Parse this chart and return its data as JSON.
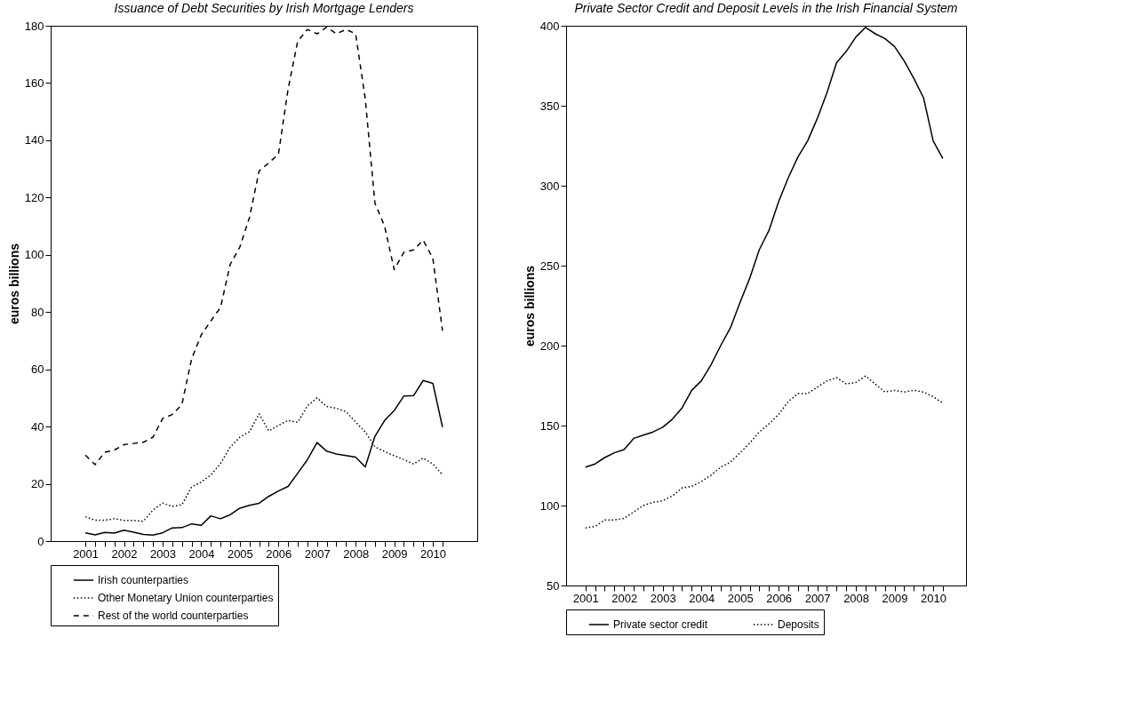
{
  "chart_data": [
    {
      "type": "line",
      "title": "Issuance of Debt Securities by Irish Mortgage Lenders",
      "ylabel": "euros billions",
      "legend": "bottom",
      "x": [
        2001,
        2001.25,
        2001.5,
        2001.75,
        2002,
        2002.25,
        2002.5,
        2002.75,
        2003,
        2003.25,
        2003.5,
        2003.75,
        2004,
        2004.25,
        2004.5,
        2004.75,
        2005,
        2005.25,
        2005.5,
        2005.75,
        2006,
        2006.25,
        2006.5,
        2006.75,
        2007,
        2007.25,
        2007.5,
        2007.75,
        2008,
        2008.25,
        2008.5,
        2008.75,
        2009,
        2009.25,
        2009.5,
        2009.75,
        2010,
        2010.25
      ],
      "xlim": [
        2000.1,
        2011.15
      ],
      "ylim": [
        0,
        180
      ],
      "yticks": [
        0,
        20,
        40,
        60,
        80,
        100,
        120,
        140,
        160,
        180
      ],
      "xticks": [
        2001,
        {
          "value": 2001.25,
          "label": null
        },
        {
          "value": 2001.5,
          "label": null
        },
        {
          "value": 2001.75,
          "label": null
        },
        2002,
        {
          "value": 2002.25,
          "label": null
        },
        {
          "value": 2002.5,
          "label": null
        },
        {
          "value": 2002.75,
          "label": null
        },
        2003,
        {
          "value": 2003.25,
          "label": null
        },
        {
          "value": 2003.5,
          "label": null
        },
        {
          "value": 2003.75,
          "label": null
        },
        2004,
        {
          "value": 2004.25,
          "label": null
        },
        {
          "value": 2004.5,
          "label": null
        },
        {
          "value": 2004.75,
          "label": null
        },
        2005,
        {
          "value": 2005.25,
          "label": null
        },
        {
          "value": 2005.5,
          "label": null
        },
        {
          "value": 2005.75,
          "label": null
        },
        2006,
        {
          "value": 2006.25,
          "label": null
        },
        {
          "value": 2006.5,
          "label": null
        },
        {
          "value": 2006.75,
          "label": null
        },
        2007,
        {
          "value": 2007.25,
          "label": null
        },
        {
          "value": 2007.5,
          "label": null
        },
        {
          "value": 2007.75,
          "label": null
        },
        2008,
        {
          "value": 2008.25,
          "label": null
        },
        {
          "value": 2008.5,
          "label": null
        },
        {
          "value": 2008.75,
          "label": null
        },
        2009,
        {
          "value": 2009.25,
          "label": null
        },
        {
          "value": 2009.5,
          "label": null
        },
        {
          "value": 2009.75,
          "label": null
        },
        2010,
        {
          "value": 2010.25,
          "label": null
        }
      ],
      "series": [
        {
          "name": "Irish counterparties",
          "color": "#000000",
          "line_style": "solid",
          "values": [
            2.9,
            2.2,
            3.0,
            2.8,
            3.8,
            3.1,
            2.3,
            2.1,
            2.9,
            4.6,
            4.7,
            6.0,
            5.5,
            8.8,
            7.8,
            9.2,
            11.5,
            12.5,
            13.2,
            15.6,
            17.5,
            19.1,
            23.7,
            28.4,
            34.4,
            31.4,
            30.4,
            29.9,
            29.3,
            25.9,
            36.6,
            42.1,
            45.6,
            50.7,
            50.8,
            56.1,
            55.1,
            39.8
          ]
        },
        {
          "name": "Other Monetary Union counterparties",
          "color": "#000000",
          "line_style": "dotted",
          "values": [
            8.5,
            7.3,
            7.3,
            7.8,
            7.2,
            7.2,
            6.9,
            10.8,
            13.3,
            12.1,
            12.7,
            18.9,
            20.6,
            23.1,
            27.1,
            32.8,
            36.3,
            38.2,
            44.4,
            38.5,
            40.4,
            42.1,
            41.5,
            47.2,
            50.0,
            47.0,
            46.4,
            45.2,
            41.6,
            38.1,
            32.9,
            31.3,
            29.8,
            28.5,
            26.9,
            29.0,
            26.9,
            23.2
          ]
        },
        {
          "name": "Rest of the world counterparties",
          "color": "#000000",
          "line_style": "dashed",
          "values": [
            30.0,
            26.7,
            31.0,
            31.8,
            33.7,
            34.1,
            34.5,
            36.3,
            42.8,
            44.2,
            47.7,
            63.6,
            72.0,
            76.9,
            81.6,
            96.6,
            102.7,
            113.0,
            129.3,
            132.1,
            135.1,
            157.9,
            174.6,
            178.7,
            177.2,
            179.5,
            177.2,
            178.7,
            177.2,
            154.4,
            118.0,
            110.0,
            94.8,
            100.9,
            101.7,
            105.1,
            98.8,
            73.5
          ]
        }
      ]
    },
    {
      "type": "line",
      "title": "Private Sector Credit and Deposit Levels in the Irish Financial System",
      "ylabel": "euros billions",
      "legend": "bottom",
      "x": [
        2001,
        2001.25,
        2001.5,
        2001.75,
        2002,
        2002.25,
        2002.5,
        2002.75,
        2003,
        2003.25,
        2003.5,
        2003.75,
        2004,
        2004.25,
        2004.5,
        2004.75,
        2005,
        2005.25,
        2005.5,
        2005.75,
        2006,
        2006.25,
        2006.5,
        2006.75,
        2007,
        2007.25,
        2007.5,
        2007.75,
        2008,
        2008.25,
        2008.5,
        2008.75,
        2009,
        2009.25,
        2009.5,
        2009.75,
        2010,
        2010.25
      ],
      "xlim": [
        2000.5,
        2010.85
      ],
      "ylim": [
        50,
        400
      ],
      "yticks": [
        50,
        100,
        150,
        200,
        250,
        300,
        350,
        400
      ],
      "xticks": [
        2001,
        {
          "value": 2001.25,
          "label": null
        },
        {
          "value": 2001.5,
          "label": null
        },
        {
          "value": 2001.75,
          "label": null
        },
        2002,
        {
          "value": 2002.25,
          "label": null
        },
        {
          "value": 2002.5,
          "label": null
        },
        {
          "value": 2002.75,
          "label": null
        },
        2003,
        {
          "value": 2003.25,
          "label": null
        },
        {
          "value": 2003.5,
          "label": null
        },
        {
          "value": 2003.75,
          "label": null
        },
        2004,
        {
          "value": 2004.25,
          "label": null
        },
        {
          "value": 2004.5,
          "label": null
        },
        {
          "value": 2004.75,
          "label": null
        },
        2005,
        {
          "value": 2005.25,
          "label": null
        },
        {
          "value": 2005.5,
          "label": null
        },
        {
          "value": 2005.75,
          "label": null
        },
        2006,
        {
          "value": 2006.25,
          "label": null
        },
        {
          "value": 2006.5,
          "label": null
        },
        {
          "value": 2006.75,
          "label": null
        },
        2007,
        {
          "value": 2007.25,
          "label": null
        },
        {
          "value": 2007.5,
          "label": null
        },
        {
          "value": 2007.75,
          "label": null
        },
        2008,
        {
          "value": 2008.25,
          "label": null
        },
        {
          "value": 2008.5,
          "label": null
        },
        {
          "value": 2008.75,
          "label": null
        },
        2009,
        {
          "value": 2009.25,
          "label": null
        },
        {
          "value": 2009.5,
          "label": null
        },
        {
          "value": 2009.75,
          "label": null
        },
        2010,
        {
          "value": 2010.25,
          "label": null
        }
      ],
      "series": [
        {
          "name": "Private sector credit",
          "color": "#000000",
          "line_style": "solid",
          "values": [
            124,
            126,
            130,
            133,
            135,
            142,
            144,
            146,
            149,
            154,
            161,
            172,
            178,
            188,
            200,
            211,
            227,
            242,
            260,
            272,
            290,
            305,
            318,
            328,
            342,
            358,
            377,
            384,
            393,
            399,
            395,
            392,
            387,
            378,
            367,
            355,
            328,
            317
          ]
        },
        {
          "name": "Deposits",
          "color": "#000000",
          "line_style": "dotted",
          "values": [
            86,
            87,
            91,
            91,
            92,
            96,
            100,
            102,
            103,
            106,
            111,
            112,
            115,
            119,
            124,
            127,
            133,
            139,
            146,
            151,
            157,
            165,
            170,
            170,
            174,
            178,
            180,
            176,
            177,
            181,
            176,
            171,
            172,
            171,
            172,
            171,
            168,
            164
          ]
        }
      ]
    }
  ]
}
